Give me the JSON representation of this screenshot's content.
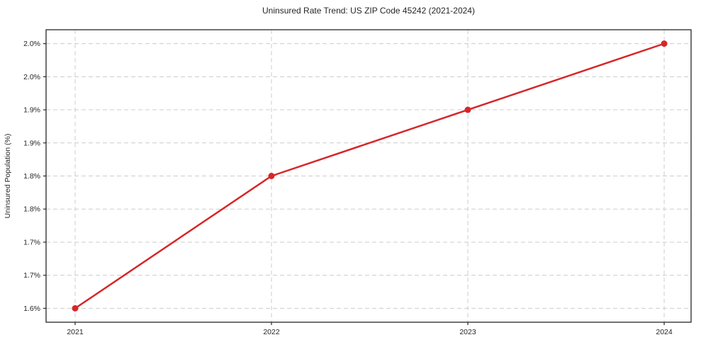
{
  "chart_data": {
    "type": "line",
    "title": "Uninsured Rate Trend: US ZIP Code 45242 (2021-2024)",
    "xlabel": "",
    "ylabel": "Uninsured Population (%)",
    "x": [
      2021,
      2022,
      2023,
      2024
    ],
    "values": [
      1.6,
      1.8,
      1.9,
      2.0
    ],
    "xticks": [
      {
        "value": 2021,
        "label": "2021"
      },
      {
        "value": 2022,
        "label": "2022"
      },
      {
        "value": 2023,
        "label": "2023"
      },
      {
        "value": 2024,
        "label": "2024"
      }
    ],
    "yticks": [
      {
        "value": 1.6,
        "label": "1.6%"
      },
      {
        "value": 1.65,
        "label": "1.7%"
      },
      {
        "value": 1.7,
        "label": "1.7%"
      },
      {
        "value": 1.75,
        "label": "1.8%"
      },
      {
        "value": 1.8,
        "label": "1.8%"
      },
      {
        "value": 1.85,
        "label": "1.9%"
      },
      {
        "value": 1.9,
        "label": "1.9%"
      },
      {
        "value": 1.95,
        "label": "2.0%"
      },
      {
        "value": 2.0,
        "label": "2.0%"
      }
    ],
    "xlim": [
      2020.852,
      2024.137
    ],
    "ylim": [
      1.579,
      2.021
    ],
    "grid": true,
    "legend_position": "none",
    "colors": {
      "line": "#d62728",
      "marker": "#d62728",
      "grid": "#cccccc",
      "axis": "#262626",
      "text": "#262626",
      "background": "#ffffff"
    }
  }
}
